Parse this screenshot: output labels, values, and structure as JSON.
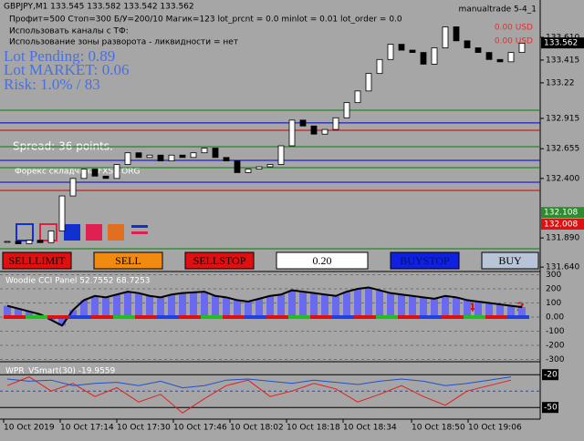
{
  "header": {
    "symbol": "GBPJPY,M1 133.545 133.582 133.542 133.562",
    "settings": "Профит=500 Стоп=300 Б/У=200/10 Магик=123 lot_prcnt = 0.0 minlot = 0.01 lot_order = 0.0",
    "channels": "Использовать каналы с ТФ:",
    "reversal_zone": "Использование зоны разворота - ликвидности = нет",
    "expert": "manualtrade 5-4_1",
    "usd_1": "0.00 USD",
    "usd_2": "0.00 USD"
  },
  "info": {
    "lot_pending": "Lot Pending: 0.89",
    "lot_market": "Lot MARKET: 0.06",
    "risk": "Risk: 1.0% / 83",
    "spread": "Spread: 36 points.",
    "brand": "Форекс складчина FXSA.ORG"
  },
  "buttons": [
    "SELLLIMIT",
    "SELL",
    "SELLSTOP",
    "0.20",
    "BUYSTOP",
    "BUY"
  ],
  "main": {
    "ylim": [
      131.602,
      133.93
    ],
    "yticks": [
      {
        "value": 133.61,
        "label": "133.610"
      },
      133.415,
      133.22,
      132.915,
      132.655,
      {
        "value": 132.4,
        "label": "132.400"
      },
      {
        "value": 131.89,
        "label": "131.890"
      },
      {
        "value": 131.64,
        "label": "131.640"
      }
    ],
    "price_labels": [
      {
        "value": 133.562,
        "color": "#000000"
      },
      {
        "value": 132.108,
        "color": "#2e8b2e"
      },
      {
        "value": 132.008,
        "color": "#e01010"
      }
    ],
    "levels": [
      {
        "value": 132.985,
        "color": "#008000"
      },
      {
        "value": 132.876,
        "color": "#0000cd"
      },
      {
        "value": 132.813,
        "color": "#cc0000"
      },
      {
        "value": 132.672,
        "color": "#008000"
      },
      {
        "value": 132.555,
        "color": "#0000cd"
      },
      {
        "value": 132.493,
        "color": "#008000"
      },
      {
        "value": 132.368,
        "color": "#0000cd"
      },
      {
        "value": 132.297,
        "color": "#cc0000"
      },
      {
        "value": 131.797,
        "color": "#008000"
      }
    ],
    "closes": [
      131.86,
      131.84,
      131.87,
      131.85,
      131.95,
      132.25,
      132.4,
      132.48,
      132.42,
      132.4,
      132.52,
      132.62,
      132.58,
      132.6,
      132.55,
      132.6,
      132.58,
      132.62,
      132.66,
      132.58,
      132.55,
      132.45,
      132.48,
      132.5,
      132.52,
      132.68,
      132.9,
      132.85,
      132.78,
      132.82,
      132.92,
      133.05,
      133.15,
      133.3,
      133.42,
      133.55,
      133.5,
      133.48,
      133.38,
      133.52,
      133.7,
      133.58,
      133.52,
      133.48,
      133.42,
      133.4,
      133.48,
      133.56
    ]
  },
  "cci": {
    "title": "Woodie CCI Panel 52.7552 68.7253",
    "mark_1": "4",
    "mark_2": "3",
    "ylim": [
      -310,
      310
    ],
    "yticks": [
      300,
      200,
      100,
      {
        "value": 0,
        "label": "0.00"
      },
      -100,
      -200,
      -300
    ],
    "values": [
      80,
      60,
      40,
      20,
      -20,
      -60,
      50,
      120,
      150,
      140,
      160,
      180,
      170,
      150,
      140,
      160,
      170,
      175,
      180,
      150,
      140,
      120,
      110,
      130,
      150,
      160,
      190,
      180,
      170,
      160,
      150,
      180,
      200,
      210,
      190,
      170,
      160,
      150,
      140,
      130,
      150,
      140,
      120,
      110,
      100,
      90,
      80,
      70
    ]
  },
  "wpr": {
    "title": "WPR_VSmart(30) -19.9559",
    "ylim": [
      -59,
      -9
    ],
    "yticks": [
      -20,
      -50
    ],
    "level": -35,
    "series": [
      {
        "color": "#e02020",
        "values": [
          -30,
          -22,
          -35,
          -28,
          -40,
          -32,
          -45,
          -38,
          -55,
          -42,
          -30,
          -25,
          -40,
          -35,
          -28,
          -33,
          -45,
          -38,
          -30,
          -40,
          -48,
          -35,
          -30,
          -25
        ]
      },
      {
        "color": "#2050d0",
        "values": [
          -24,
          -26,
          -25,
          -30,
          -28,
          -27,
          -30,
          -26,
          -32,
          -30,
          -25,
          -24,
          -26,
          -28,
          -25,
          -27,
          -29,
          -26,
          -24,
          -26,
          -30,
          -28,
          -25,
          -22
        ]
      }
    ]
  },
  "time_labels": [
    "10 Oct 2019",
    "10 Oct 17:14",
    "10 Oct 17:30",
    "10 Oct 17:46",
    "10 Oct 18:02",
    "10 Oct 18:18",
    "10 Oct 18:34",
    "10 Oct 18:50",
    "10 Oct 19:06"
  ]
}
